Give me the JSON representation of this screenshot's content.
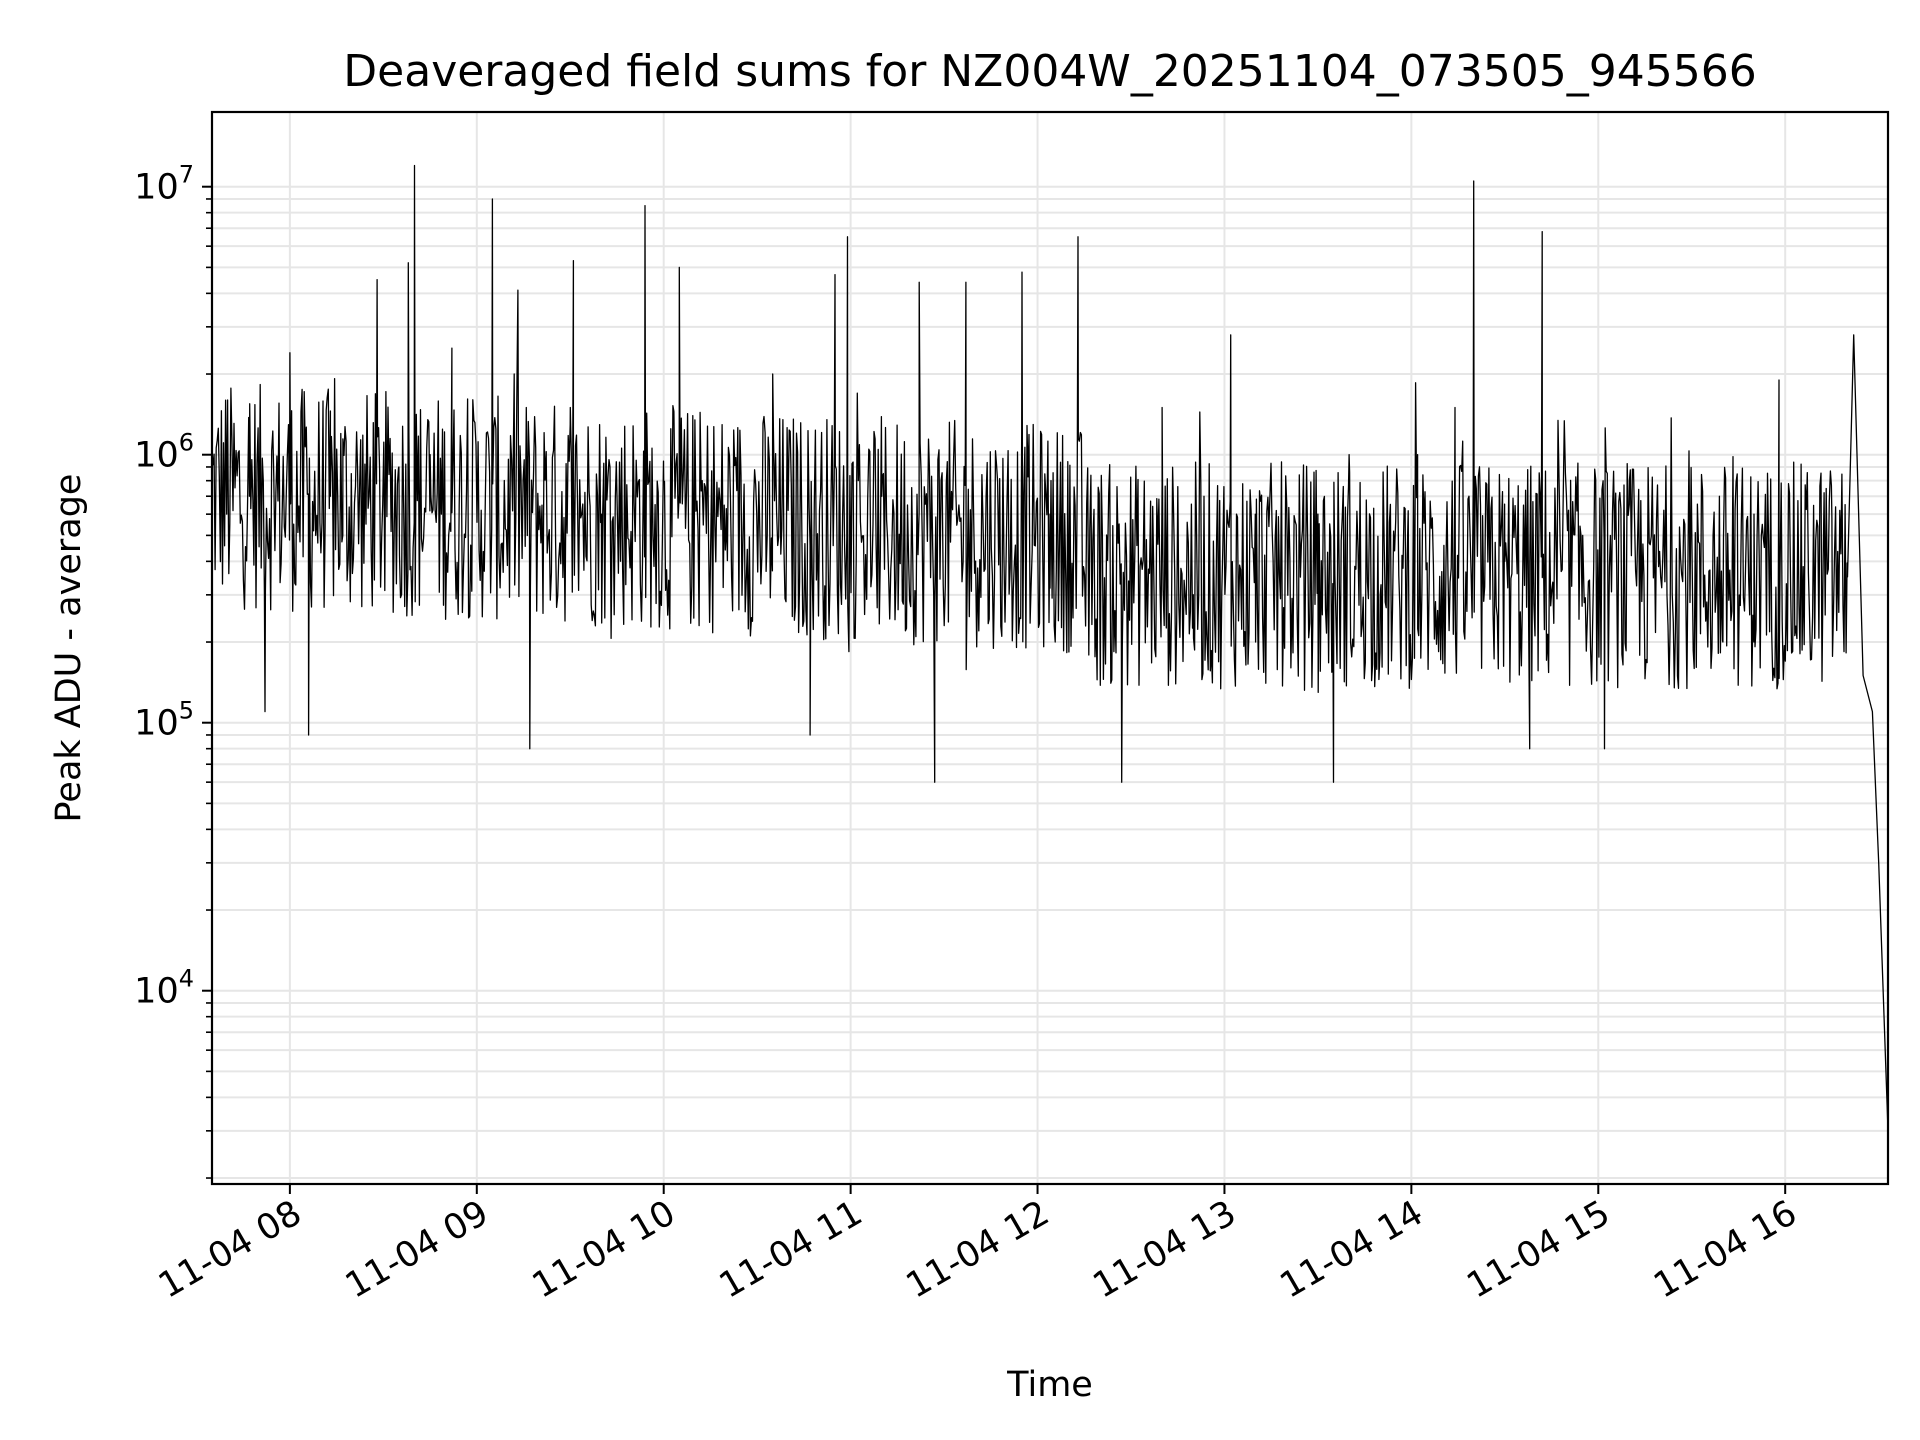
{
  "chart_data": {
    "type": "line",
    "title": "Deaveraged field sums for NZ004W_20251104_073505_945566",
    "xlabel": "Time",
    "ylabel": "Peak ADU - average",
    "yscale": "log",
    "xlim": [
      "11-04 07:35",
      "11-04 16:33"
    ],
    "ylim": [
      1900,
      19000000
    ],
    "grid": true,
    "line_color": "#000000",
    "grid_color": "#e6e6e6",
    "x_ticks": [
      {
        "label": "11-04 08",
        "value": "11-04 08:00"
      },
      {
        "label": "11-04 09",
        "value": "11-04 09:00"
      },
      {
        "label": "11-04 10",
        "value": "11-04 10:00"
      },
      {
        "label": "11-04 11",
        "value": "11-04 11:00"
      },
      {
        "label": "11-04 12",
        "value": "11-04 12:00"
      },
      {
        "label": "11-04 13",
        "value": "11-04 13:00"
      },
      {
        "label": "11-04 14",
        "value": "11-04 14:00"
      },
      {
        "label": "11-04 15",
        "value": "11-04 15:00"
      },
      {
        "label": "11-04 16",
        "value": "11-04 16:00"
      }
    ],
    "y_ticks": [
      {
        "base": "10",
        "exp": "4",
        "value": 10000
      },
      {
        "base": "10",
        "exp": "5",
        "value": 100000
      },
      {
        "base": "10",
        "exp": "6",
        "value": 1000000
      },
      {
        "base": "10",
        "exp": "7",
        "value": 10000000
      }
    ],
    "series": [
      {
        "points": [
          [
            "11-04 07:35",
            500000
          ],
          [
            "11-04 07:40",
            1600000
          ],
          [
            "11-04 07:47",
            700000
          ],
          [
            "11-04 07:52",
            110000
          ],
          [
            "11-04 07:55",
            600000
          ],
          [
            "11-04 08:00",
            2400000
          ],
          [
            "11-04 08:06",
            90000
          ],
          [
            "11-04 08:13",
            700000
          ],
          [
            "11-04 08:17",
            500000
          ],
          [
            "11-04 08:28",
            4500000
          ],
          [
            "11-04 08:35",
            900000
          ],
          [
            "11-04 08:38",
            5200000
          ],
          [
            "11-04 08:40",
            12000000
          ],
          [
            "11-04 08:45",
            1000000
          ],
          [
            "11-04 08:52",
            2500000
          ],
          [
            "11-04 09:05",
            9000000
          ],
          [
            "11-04 09:12",
            2000000
          ],
          [
            "11-04 09:17",
            80000
          ],
          [
            "11-04 09:30",
            1500000
          ],
          [
            "11-04 09:31",
            5300000
          ],
          [
            "11-04 09:40",
            600000
          ],
          [
            "11-04 09:54",
            8500000
          ],
          [
            "11-04 10:00",
            800000
          ],
          [
            "11-04 10:05",
            5000000
          ],
          [
            "11-04 10:20",
            500000
          ],
          [
            "11-04 10:35",
            2000000
          ],
          [
            "11-04 10:47",
            90000
          ],
          [
            "11-04 10:55",
            4700000
          ],
          [
            "11-04 10:59",
            6500000
          ],
          [
            "11-04 11:10",
            700000
          ],
          [
            "11-04 11:22",
            4400000
          ],
          [
            "11-04 11:27",
            60000
          ],
          [
            "11-04 11:37",
            4400000
          ],
          [
            "11-04 11:55",
            4800000
          ],
          [
            "11-04 12:04",
            600000
          ],
          [
            "11-04 12:13",
            6500000
          ],
          [
            "11-04 12:27",
            60000
          ],
          [
            "11-04 12:40",
            1500000
          ],
          [
            "11-04 12:50",
            300000
          ],
          [
            "11-04 13:02",
            2800000
          ],
          [
            "11-04 13:10",
            200000
          ],
          [
            "11-04 13:30",
            600000
          ],
          [
            "11-04 13:35",
            60000
          ],
          [
            "11-04 13:40",
            1000000
          ],
          [
            "11-04 13:50",
            300000
          ],
          [
            "11-04 14:02",
            1000000
          ],
          [
            "11-04 14:14",
            1500000
          ],
          [
            "11-04 14:20",
            10500000
          ],
          [
            "11-04 14:30",
            400000
          ],
          [
            "11-04 14:38",
            80000
          ],
          [
            "11-04 14:42",
            6800000
          ],
          [
            "11-04 14:55",
            500000
          ],
          [
            "11-04 15:02",
            80000
          ],
          [
            "11-04 15:10",
            800000
          ],
          [
            "11-04 15:25",
            400000
          ],
          [
            "11-04 15:40",
            200000
          ],
          [
            "11-04 15:50",
            600000
          ],
          [
            "11-04 15:58",
            1900000
          ],
          [
            "11-04 16:05",
            400000
          ],
          [
            "11-04 16:15",
            580000
          ],
          [
            "11-04 16:20",
            350000
          ],
          [
            "11-04 16:22",
            2800000
          ],
          [
            "11-04 16:25",
            150000
          ],
          [
            "11-04 16:28",
            110000
          ],
          [
            "11-04 16:30",
            30000
          ],
          [
            "11-04 16:33",
            3000
          ]
        ]
      }
    ]
  }
}
